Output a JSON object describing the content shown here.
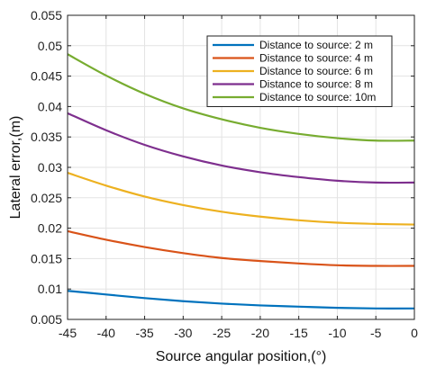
{
  "chart_data": {
    "type": "line",
    "xlabel": "Source angular position,(°)",
    "ylabel": "Lateral error,(m)",
    "xlim": [
      -45,
      0
    ],
    "ylim": [
      0.005,
      0.055
    ],
    "xticks": [
      -45,
      -40,
      -35,
      -30,
      -25,
      -20,
      -15,
      -10,
      -5,
      0
    ],
    "yticks": [
      0.005,
      0.01,
      0.015,
      0.02,
      0.025,
      0.03,
      0.035,
      0.04,
      0.045,
      0.05,
      0.055
    ],
    "xtick_labels": [
      "-45",
      "-40",
      "-35",
      "-30",
      "-25",
      "-20",
      "-15",
      "-10",
      "-5",
      "0"
    ],
    "ytick_labels": [
      "0.005",
      "0.01",
      "0.015",
      "0.02",
      "0.025",
      "0.03",
      "0.035",
      "0.04",
      "0.045",
      "0.05",
      "0.055"
    ],
    "grid": true,
    "legend_position": "top-right",
    "x": [
      -45,
      -40,
      -35,
      -30,
      -25,
      -20,
      -15,
      -10,
      -5,
      0
    ],
    "series": [
      {
        "name": "Distance to source: 2 m",
        "color": "#0072BD",
        "values": [
          0.0097,
          0.0091,
          0.0085,
          0.008,
          0.0076,
          0.0073,
          0.0071,
          0.0069,
          0.0068,
          0.0068
        ]
      },
      {
        "name": "Distance to source: 4 m",
        "color": "#D95319",
        "values": [
          0.0195,
          0.0181,
          0.0169,
          0.0159,
          0.0151,
          0.0146,
          0.0142,
          0.0139,
          0.0138,
          0.0138
        ]
      },
      {
        "name": "Distance to source: 6 m",
        "color": "#EDB120",
        "values": [
          0.0291,
          0.027,
          0.0252,
          0.0238,
          0.0227,
          0.0219,
          0.0213,
          0.0209,
          0.0207,
          0.0206
        ]
      },
      {
        "name": "Distance to source: 8 m",
        "color": "#7E2F8E",
        "values": [
          0.0389,
          0.0361,
          0.0337,
          0.0318,
          0.0303,
          0.0292,
          0.0284,
          0.0278,
          0.0275,
          0.0275
        ]
      },
      {
        "name": "Distance to source: 10m",
        "color": "#77AC30",
        "values": [
          0.0486,
          0.0451,
          0.0421,
          0.0397,
          0.0379,
          0.0365,
          0.0355,
          0.0348,
          0.0344,
          0.0344
        ]
      }
    ]
  }
}
